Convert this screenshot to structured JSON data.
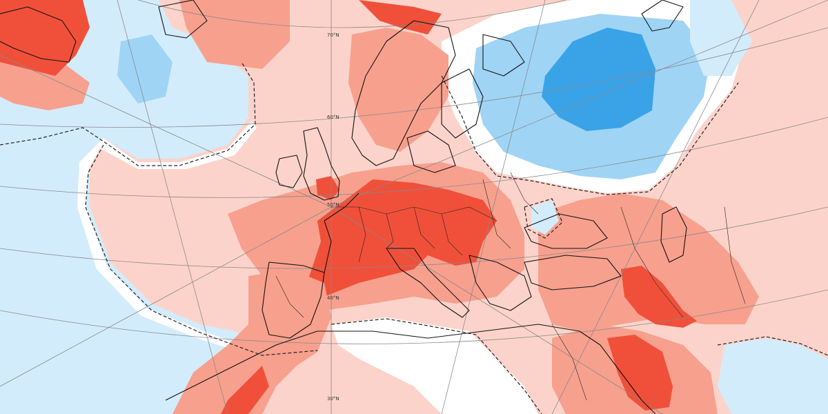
{
  "map": {
    "colors": {
      "strong_warm": "#f0503a",
      "warm": "#f7a08e",
      "mild_warm": "#fcd3ca",
      "neutral": "#ffffff",
      "mild_cool": "#d3ecfb",
      "cool": "#9fd4f5",
      "strong_cool": "#3aa3e8"
    },
    "latitude_labels": [
      "70°N",
      "60°N",
      "50°N",
      "40°N",
      "30°N"
    ]
  }
}
